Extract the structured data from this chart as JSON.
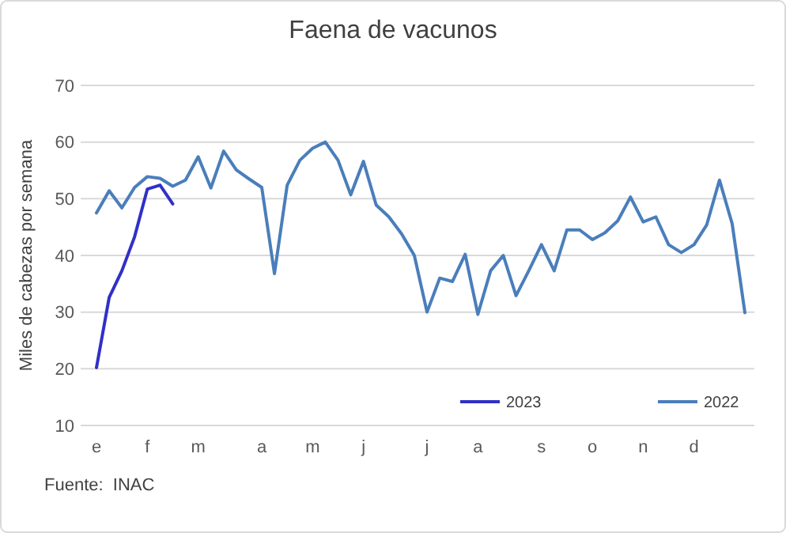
{
  "chart_data": {
    "type": "line",
    "title": "Faena de vacunos",
    "ylabel": "Miles de cabezas por semana",
    "annotations": [
      "Fuente:  INAC"
    ],
    "categories": [
      "e",
      null,
      null,
      null,
      "f",
      null,
      null,
      null,
      "m",
      null,
      null,
      null,
      null,
      "a",
      null,
      null,
      null,
      "m",
      null,
      null,
      null,
      "j",
      null,
      null,
      null,
      null,
      "j",
      null,
      null,
      null,
      "a",
      null,
      null,
      null,
      null,
      "s",
      null,
      null,
      null,
      "o",
      null,
      null,
      null,
      "n",
      null,
      null,
      null,
      "d",
      null,
      null,
      null,
      null
    ],
    "series": [
      {
        "name": "2023",
        "color": "#3030c8",
        "values": [
          20.2,
          32.6,
          37.3,
          43.3,
          51.7,
          52.4,
          49.1,
          null,
          null,
          null,
          null,
          null,
          null,
          null,
          null,
          null,
          null,
          null,
          null,
          null,
          null,
          null,
          null,
          null,
          null,
          null,
          null,
          null,
          null,
          null,
          null,
          null,
          null,
          null,
          null,
          null,
          null,
          null,
          null,
          null,
          null,
          null,
          null,
          null,
          null,
          null,
          null,
          null,
          null,
          null,
          null,
          null
        ]
      },
      {
        "name": "2022",
        "color": "#4a7ebb",
        "values": [
          47.5,
          51.4,
          48.4,
          52.0,
          53.9,
          53.6,
          52.2,
          53.3,
          57.4,
          51.9,
          58.4,
          55.1,
          53.5,
          52.0,
          36.8,
          52.4,
          56.8,
          58.9,
          60.0,
          56.8,
          50.7,
          56.6,
          48.9,
          46.8,
          43.8,
          40.0,
          30.0,
          36.0,
          35.4,
          40.2,
          29.6,
          37.3,
          40.0,
          32.9,
          37.3,
          41.9,
          37.3,
          44.5,
          44.5,
          42.8,
          44.0,
          46.1,
          50.3,
          45.9,
          46.8,
          41.9,
          40.5,
          41.9,
          45.4,
          53.3,
          45.6,
          29.9
        ]
      }
    ],
    "ylim": [
      10,
      70
    ],
    "yticks": [
      10,
      20,
      30,
      40,
      50,
      60,
      70
    ],
    "grid": "y",
    "legend": "bottom right",
    "line_style": "solid",
    "marker": "none"
  }
}
